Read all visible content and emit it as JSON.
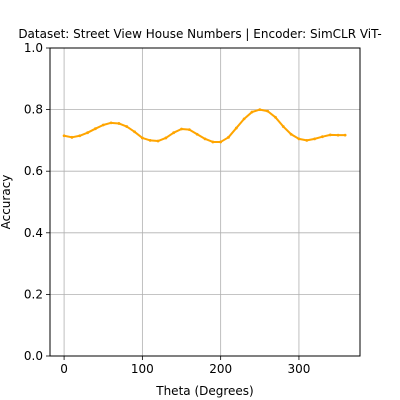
{
  "chart_data": {
    "type": "line",
    "title": "Dataset: Street View House Numbers | Encoder: SimCLR ViT-",
    "xlabel": "Theta (Degrees)",
    "ylabel": "Accuracy",
    "xlim": [
      -18,
      378
    ],
    "ylim": [
      0.0,
      1.0
    ],
    "xticks": [
      "0",
      "100",
      "200",
      "300"
    ],
    "xtick_values": [
      0,
      100,
      200,
      300
    ],
    "yticks": [
      "0.0",
      "0.2",
      "0.4",
      "0.6",
      "0.8",
      "1.0"
    ],
    "ytick_values": [
      0.0,
      0.2,
      0.4,
      0.6,
      0.8,
      1.0
    ],
    "grid": true,
    "series": [
      {
        "color": "#ffa500",
        "x": [
          0,
          10,
          20,
          30,
          40,
          50,
          60,
          70,
          80,
          90,
          100,
          110,
          120,
          130,
          140,
          150,
          160,
          170,
          180,
          190,
          200,
          210,
          220,
          230,
          240,
          250,
          260,
          270,
          280,
          290,
          300,
          310,
          320,
          330,
          340,
          350,
          359
        ],
        "y": [
          0.715,
          0.71,
          0.715,
          0.725,
          0.738,
          0.75,
          0.757,
          0.755,
          0.745,
          0.728,
          0.708,
          0.7,
          0.698,
          0.708,
          0.725,
          0.737,
          0.735,
          0.72,
          0.705,
          0.695,
          0.695,
          0.71,
          0.74,
          0.77,
          0.792,
          0.8,
          0.795,
          0.775,
          0.745,
          0.72,
          0.705,
          0.7,
          0.705,
          0.712,
          0.718,
          0.717,
          0.717
        ]
      }
    ]
  }
}
